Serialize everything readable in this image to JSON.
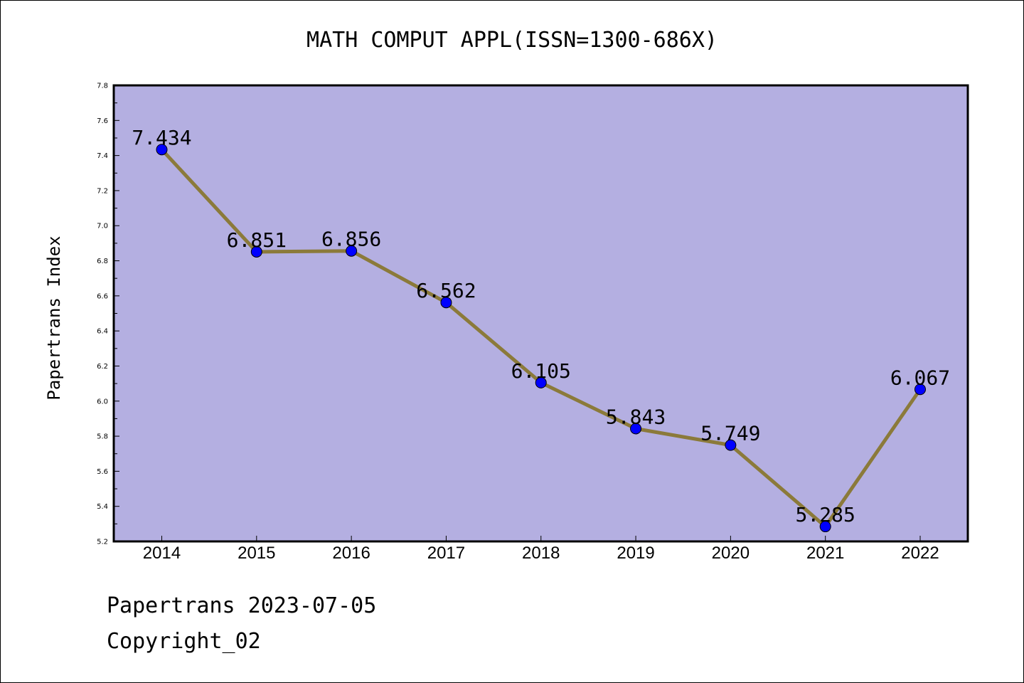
{
  "chart_data": {
    "type": "line",
    "title": "MATH COMPUT APPL(ISSN=1300-686X)",
    "xlabel": "",
    "ylabel": "Papertrans Index",
    "categories": [
      "2014",
      "2015",
      "2016",
      "2017",
      "2018",
      "2019",
      "2020",
      "2021",
      "2022"
    ],
    "values": [
      7.434,
      6.851,
      6.856,
      6.562,
      6.105,
      5.843,
      5.749,
      5.285,
      6.067
    ],
    "data_labels": [
      "7.434",
      "6.851",
      "6.856",
      "6.562",
      "6.105",
      "5.843",
      "5.749",
      "5.285",
      "6.067"
    ],
    "ylim": [
      5.2,
      7.8
    ],
    "yticks": [
      "5.2",
      "5.4",
      "5.6",
      "5.8",
      "6.0",
      "6.2",
      "6.4",
      "6.6",
      "6.8",
      "7.0",
      "7.2",
      "7.4",
      "7.6",
      "7.8"
    ],
    "grid": false,
    "legend": "none",
    "colors": {
      "plot_background": "#b4afe1",
      "line": "#8b7a3a",
      "marker": "#0000ff"
    }
  },
  "footer": {
    "line1": "Papertrans 2023-07-05",
    "line2": "Copyright_02"
  }
}
